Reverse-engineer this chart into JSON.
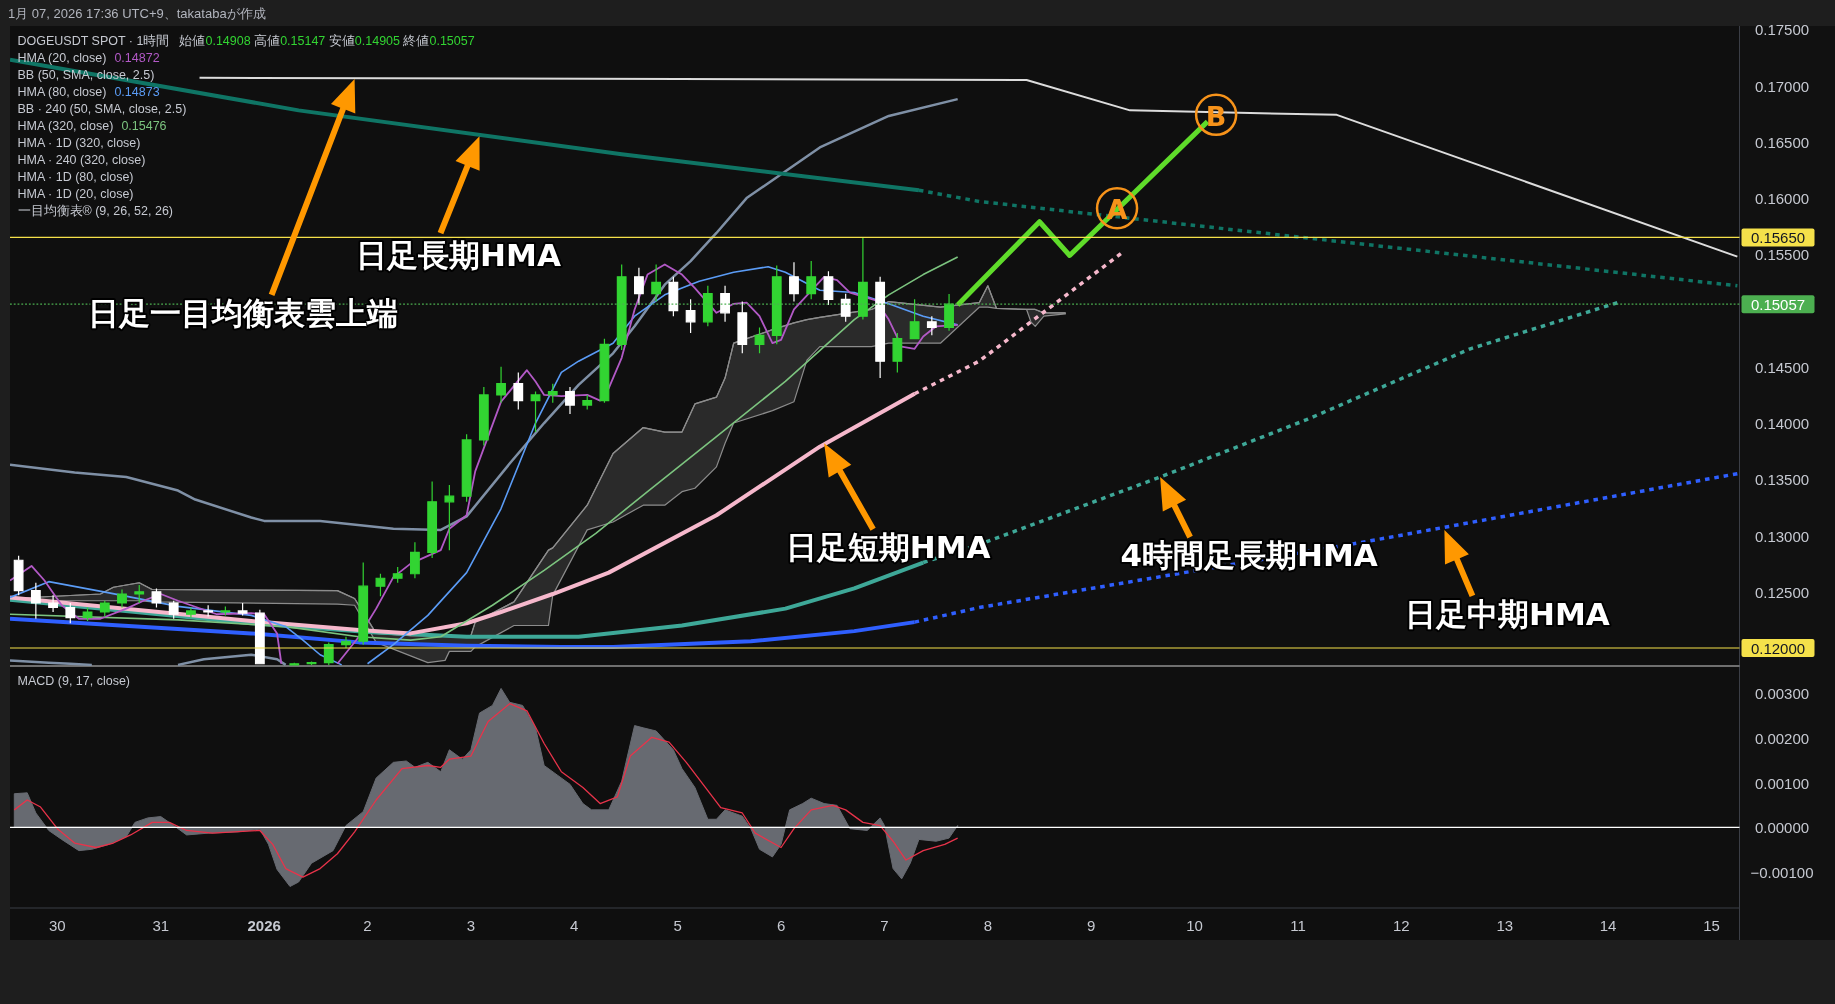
{
  "chart_data": [
    {
      "type": "candlestick",
      "title": "DOGEUSDT SPOT · 1時間",
      "subtitle": "始値0.14908 高値0.15147 安値0.14905 終値0.15057",
      "x": [
        "2025-12-29T15:00",
        "2025-12-29T19:00",
        "2025-12-29T23:00",
        "2025-12-30T03:00",
        "2025-12-30T07:00",
        "2025-12-30T11:00",
        "2025-12-30T15:00",
        "2025-12-30T19:00",
        "2025-12-30T23:00",
        "2025-12-31T03:00",
        "2025-12-31T07:00",
        "2025-12-31T11:00",
        "2025-12-31T15:00",
        "2025-12-31T19:00",
        "2025-12-31T23:00",
        "2026-01-01T07:00",
        "2026-01-01T11:00",
        "2026-01-01T15:00",
        "2026-01-01T19:00",
        "2026-01-01T23:00",
        "2026-01-02T03:00",
        "2026-01-02T07:00",
        "2026-01-02T11:00",
        "2026-01-02T15:00",
        "2026-01-02T19:00",
        "2026-01-02T23:00",
        "2026-01-03T03:00",
        "2026-01-03T07:00",
        "2026-01-03T11:00",
        "2026-01-03T15:00",
        "2026-01-03T19:00",
        "2026-01-03T23:00",
        "2026-01-04T03:00",
        "2026-01-04T07:00",
        "2026-01-04T11:00",
        "2026-01-04T15:00",
        "2026-01-04T19:00",
        "2026-01-04T23:00",
        "2026-01-05T03:00",
        "2026-01-05T07:00",
        "2026-01-05T11:00",
        "2026-01-05T15:00",
        "2026-01-05T19:00",
        "2026-01-05T23:00",
        "2026-01-06T03:00",
        "2026-01-06T07:00",
        "2026-01-06T11:00",
        "2026-01-06T15:00",
        "2026-01-06T19:00",
        "2026-01-06T23:00",
        "2026-01-07T03:00",
        "2026-01-07T07:00",
        "2026-01-07T11:00",
        "2026-01-07T15:00"
      ],
      "ohlc": [
        [
          0.1278,
          0.1282,
          0.1247,
          0.1251
        ],
        [
          0.1251,
          0.1258,
          0.1226,
          0.124
        ],
        [
          0.124,
          0.1247,
          0.1232,
          0.1236
        ],
        [
          0.1236,
          0.124,
          0.1222,
          0.1227
        ],
        [
          0.1227,
          0.1236,
          0.1224,
          0.1232
        ],
        [
          0.1232,
          0.1242,
          0.1228,
          0.124
        ],
        [
          0.124,
          0.1252,
          0.1236,
          0.1248
        ],
        [
          0.1248,
          0.1256,
          0.124,
          0.125
        ],
        [
          0.125,
          0.1253,
          0.1236,
          0.124
        ],
        [
          0.124,
          0.1242,
          0.1226,
          0.123
        ],
        [
          0.123,
          0.1236,
          0.1227,
          0.1233
        ],
        [
          0.1233,
          0.1238,
          0.1228,
          0.1232
        ],
        [
          0.1232,
          0.1237,
          0.1229,
          0.1233
        ],
        [
          0.1233,
          0.124,
          0.1229,
          0.1231
        ],
        [
          0.1231,
          0.1234,
          0.1186,
          0.1186
        ],
        [
          0.1185,
          0.1187,
          0.1185,
          0.1186
        ],
        [
          0.1186,
          0.1188,
          0.1185,
          0.1187
        ],
        [
          0.1187,
          0.1205,
          0.1185,
          0.1203
        ],
        [
          0.1203,
          0.121,
          0.12,
          0.1206
        ],
        [
          0.1206,
          0.1276,
          0.1203,
          0.1255
        ],
        [
          0.1255,
          0.1266,
          0.1246,
          0.1262
        ],
        [
          0.1262,
          0.1272,
          0.1258,
          0.1266
        ],
        [
          0.1266,
          0.1294,
          0.1262,
          0.1285
        ],
        [
          0.1285,
          0.1348,
          0.128,
          0.133
        ],
        [
          0.133,
          0.1345,
          0.1287,
          0.1335
        ],
        [
          0.1335,
          0.139,
          0.133,
          0.1385
        ],
        [
          0.1385,
          0.1432,
          0.138,
          0.1425
        ],
        [
          0.1425,
          0.145,
          0.1418,
          0.1435
        ],
        [
          0.1435,
          0.1445,
          0.1412,
          0.142
        ],
        [
          0.142,
          0.1428,
          0.1392,
          0.1425
        ],
        [
          0.1425,
          0.1435,
          0.1418,
          0.1428
        ],
        [
          0.1428,
          0.1432,
          0.1408,
          0.1416
        ],
        [
          0.1416,
          0.1425,
          0.1412,
          0.142
        ],
        [
          0.142,
          0.1475,
          0.1418,
          0.147
        ],
        [
          0.147,
          0.1541,
          0.1465,
          0.153
        ],
        [
          0.153,
          0.1538,
          0.1505,
          0.1515
        ],
        [
          0.1515,
          0.1541,
          0.1508,
          0.1525
        ],
        [
          0.1525,
          0.153,
          0.1495,
          0.15
        ],
        [
          0.15,
          0.151,
          0.148,
          0.149
        ],
        [
          0.149,
          0.1522,
          0.1486,
          0.1515
        ],
        [
          0.1515,
          0.1522,
          0.149,
          0.1498
        ],
        [
          0.1498,
          0.1508,
          0.1462,
          0.147
        ],
        [
          0.147,
          0.1485,
          0.1462,
          0.1478
        ],
        [
          0.1478,
          0.154,
          0.147,
          0.153
        ],
        [
          0.153,
          0.1543,
          0.1508,
          0.1515
        ],
        [
          0.1515,
          0.1544,
          0.151,
          0.153
        ],
        [
          0.153,
          0.1535,
          0.1505,
          0.151
        ],
        [
          0.151,
          0.1515,
          0.149,
          0.1495
        ],
        [
          0.1495,
          0.1565,
          0.1492,
          0.1525
        ],
        [
          0.1525,
          0.153,
          0.144,
          0.1455
        ],
        [
          0.1455,
          0.148,
          0.1445,
          0.1475
        ],
        [
          0.1475,
          0.151,
          0.1475,
          0.149
        ],
        [
          0.149,
          0.1495,
          0.1478,
          0.1485
        ],
        [
          0.1485,
          0.15147,
          0.1482,
          0.15057
        ]
      ],
      "colors": [
        "#ffffff",
        "#ffffff",
        "#ffffff",
        "#ffffff",
        "#32d432",
        "#32d432",
        "#32d432",
        "#32d432",
        "#ffffff",
        "#ffffff",
        "#32d432",
        "#ffffff",
        "#32d432",
        "#ffffff",
        "#ffffff",
        "#32d432",
        "#32d432",
        "#32d432",
        "#32d432",
        "#32d432",
        "#32d432",
        "#32d432",
        "#32d432",
        "#32d432",
        "#32d432",
        "#32d432",
        "#32d432",
        "#32d432",
        "#ffffff",
        "#32d432",
        "#32d432",
        "#ffffff",
        "#32d432",
        "#32d432",
        "#32d432",
        "#ffffff",
        "#32d432",
        "#ffffff",
        "#ffffff",
        "#32d432",
        "#ffffff",
        "#ffffff",
        "#32d432",
        "#32d432",
        "#ffffff",
        "#32d432",
        "#ffffff",
        "#ffffff",
        "#32d432",
        "#ffffff",
        "#32d432",
        "#32d432",
        "#ffffff",
        "#32d432"
      ],
      "series": [
        {
          "type": "line",
          "color": "#8c8c8c",
          "x": [
            "2025-12-29T13:00",
            "2025-12-30T10:00",
            "2025-12-30T13:00",
            "2025-12-30T19:00",
            "2025-12-30T22:00",
            "2026-01-01T17:00",
            "2026-01-01T21:00",
            "2026-01-02T02:00",
            "2026-01-02T10:00",
            "2026-01-02T14:00",
            "2026-01-02T18:00",
            "2026-01-02T19:00",
            "2026-01-03T00:00",
            "2026-01-03T01:00",
            "2026-01-03T10:00",
            "2026-01-03T18:00",
            "2026-01-03T19:00",
            "2026-01-04T03:00",
            "2026-01-04T09:00",
            "2026-01-04T16:00",
            "2026-01-04T21:00",
            "2026-01-05T01:00",
            "2026-01-05T04:00",
            "2026-01-05T09:00",
            "2026-01-05T11:00",
            "2026-01-05T13:00",
            "2026-01-05T22:00",
            "2026-01-06T03:00",
            "2026-01-06T06:00",
            "2026-01-06T09:00",
            "2026-01-06T21:00",
            "2026-01-07T01:00",
            "2026-01-07T13:00",
            "2026-01-07T22:00",
            "2026-01-08T00:00",
            "2026-01-08T02:00",
            "2026-01-08T09:00",
            "2026-01-08T10:00",
            "2026-01-08T11:00",
            "2026-01-08T13:00",
            "2026-01-08T18:00"
          ],
          "values": [
            0.1244,
            0.1248,
            0.1254,
            0.1258,
            0.1252,
            0.1251,
            0.1244,
            0.1213,
            0.1211,
            0.1211,
            0.1211,
            0.1211,
            0.1211,
            0.1223,
            0.1241,
            0.1287,
            0.1289,
            0.1327,
            0.1373,
            0.1396,
            0.1392,
            0.1392,
            0.1417,
            0.1423,
            0.144,
            0.1471,
            0.1483,
            0.1489,
            0.1492,
            0.1494,
            0.1501,
            0.1508,
            0.1503,
            0.1507,
            0.1522,
            0.1502,
            0.1501,
            0.1501,
            0.1501,
            0.1498,
            0.1498
          ],
          "upper": [
            0.1244,
            0.1248,
            0.1254,
            0.1258,
            0.1252,
            0.1251,
            0.1244,
            0.1213,
            0.1211,
            0.1211,
            0.1211,
            0.1211,
            0.1211,
            0.1223,
            0.1241,
            0.1287,
            0.1289,
            0.1327,
            0.1373,
            0.1396,
            0.1392,
            0.1392,
            0.1417,
            0.1423,
            0.144,
            0.1471,
            0.1483,
            0.1489,
            0.1492,
            0.1494,
            0.1501,
            0.1508,
            0.1503,
            0.1507,
            0.1522,
            0.1502,
            0.1501,
            0.1501,
            0.1501,
            0.1498,
            0.1498
          ],
          "lower": [
            0.1242,
            0.1242,
            0.1242,
            0.1242,
            0.1241,
            0.1239,
            0.1238,
            0.1205,
            0.1193,
            0.1187,
            0.1189,
            0.1197,
            0.1197,
            0.1201,
            0.122,
            0.122,
            0.1247,
            0.1305,
            0.1312,
            0.1327,
            0.1327,
            0.1339,
            0.1342,
            0.1361,
            0.1382,
            0.14,
            0.1411,
            0.1419,
            0.1456,
            0.1468,
            0.1468,
            0.1471,
            0.1471,
            0.1503,
            0.1503,
            0.1502,
            0.1501,
            0.149,
            0.1486,
            0.1495,
            0.1497
          ]
        },
        {
          "type": "line",
          "color": "#7f90a6",
          "x": [
            "2025-12-29T13:00",
            "2025-12-30T04:00",
            "2025-12-30T16:00",
            "2025-12-31T04:00",
            "2025-12-31T08:00",
            "2025-12-31T21:00",
            "2026-01-01T00:00",
            "2026-01-01T13:00",
            "2026-01-02T06:00",
            "2026-01-02T17:00",
            "2026-01-02T23:00",
            "2026-01-03T09:00",
            "2026-01-03T17:00",
            "2026-01-04T01:00",
            "2026-01-04T09:00",
            "2026-01-04T14:00",
            "2026-01-04T21:00",
            "2026-01-05T03:00",
            "2026-01-05T09:00",
            "2026-01-05T16:00",
            "2026-01-06T09:00",
            "2026-01-07T01:00",
            "2026-01-07T17:00"
          ],
          "values": [
            0.1363,
            0.1356,
            0.1352,
            0.134,
            0.1332,
            0.1316,
            0.1313,
            0.1313,
            0.1306,
            0.1305,
            0.1317,
            0.1364,
            0.14,
            0.1434,
            0.1462,
            0.1486,
            0.1523,
            0.1544,
            0.1569,
            0.16,
            0.1645,
            0.1673,
            0.1688
          ]
        },
        {
          "type": "line",
          "color": "#7f90a6",
          "x": [
            "2025-12-29T13:00",
            "2025-12-29T22:00",
            "2025-12-30T03:00",
            "2025-12-30T08:00"
          ],
          "values": [
            0.1189,
            0.1187,
            0.1186,
            0.1185
          ]
        },
        {
          "type": "line",
          "color": "#7f90a6",
          "x": [
            "2025-12-31T04:00",
            "2025-12-31T10:00",
            "2025-12-31T21:00",
            "2026-01-01T03:00",
            "2026-01-01T05:00"
          ],
          "values": [
            0.1185,
            0.119,
            0.1194,
            0.119,
            0.1185
          ]
        },
        {
          "type": "line",
          "color": "#0f7565",
          "x": [
            "2025-12-29T13:00",
            "2026-01-01T08:00",
            "2026-01-04T11:00",
            "2026-01-07T08:00"
          ],
          "values": [
            0.1723,
            0.1678,
            0.1639,
            0.1607
          ]
        },
        {
          "type": "line",
          "color": "#0f7565",
          "line_style": "dotted",
          "x": [
            "2026-01-07T08:00",
            "2026-01-07T22:00",
            "2026-01-15T06:00"
          ],
          "values": [
            0.1607,
            0.1597,
            0.1522
          ]
        },
        {
          "type": "line",
          "color": "#3ea898",
          "x": [
            "2025-12-29T13:00",
            "2025-12-31T21:00",
            "2026-01-02T01:00",
            "2026-01-02T23:00",
            "2026-01-04T01:00",
            "2026-01-05T01:00",
            "2026-01-06T01:00",
            "2026-01-06T17:00",
            "2026-01-07T09:00"
          ],
          "values": [
            0.1243,
            0.1222,
            0.1214,
            0.121,
            0.121,
            0.122,
            0.1235,
            0.1253,
            0.1276
          ]
        },
        {
          "type": "line",
          "color": "#3ea898",
          "line_style": "dotted",
          "x": [
            "2026-01-07T09:00",
            "2026-01-07T22:00",
            "2026-01-09T16:00",
            "2026-01-11T02:00",
            "2026-01-12T16:00",
            "2026-01-14T03:00"
          ],
          "values": [
            0.1276,
            0.1292,
            0.1352,
            0.1403,
            0.1466,
            0.1508
          ]
        },
        {
          "type": "line",
          "color": "#2f5fff",
          "x": [
            "2025-12-29T13:00",
            "2025-12-31T21:00",
            "2026-01-01T22:00",
            "2026-01-02T23:00",
            "2026-01-03T21:00",
            "2026-01-04T09:00",
            "2026-01-05T17:00",
            "2026-01-06T17:00",
            "2026-01-07T07:00"
          ],
          "values": [
            0.1226,
            0.1213,
            0.1205,
            0.1202,
            0.1201,
            0.1201,
            0.1206,
            0.1215,
            0.1223
          ]
        },
        {
          "type": "line",
          "color": "#2f5fff",
          "line_style": "dotted",
          "x": [
            "2026-01-07T07:00",
            "2026-01-07T22:00",
            "2026-01-11T15:00",
            "2026-01-15T06:00"
          ],
          "values": [
            0.1223,
            0.1236,
            0.1294,
            0.1355
          ]
        },
        {
          "type": "line",
          "color": "#f6b8cc",
          "x": [
            "2025-12-29T13:00",
            "2025-12-31T21:00",
            "2026-01-01T22:00",
            "2026-01-02T10:00",
            "2026-01-02T23:00",
            "2026-01-03T07:00",
            "2026-01-03T19:00",
            "2026-01-04T08:00",
            "2026-01-05T09:00",
            "2026-01-06T09:00",
            "2026-01-07T07:00"
          ],
          "values": [
            0.1245,
            0.1224,
            0.1216,
            0.1213,
            0.1222,
            0.1232,
            0.1248,
            0.1267,
            0.1318,
            0.1379,
            0.1426
          ]
        },
        {
          "type": "line",
          "color": "#f6b8cc",
          "line_style": "dotted",
          "x": [
            "2026-01-07T07:00",
            "2026-01-07T22:00",
            "2026-01-09T07:00"
          ],
          "values": [
            0.1426,
            0.1455,
            0.1551
          ]
        },
        {
          "type": "line",
          "color": "#7cc47f",
          "x": [
            "2025-12-29T13:00",
            "2025-12-31T04:00",
            "2026-01-01T05:00",
            "2026-01-01T22:00",
            "2026-01-02T10:00",
            "2026-01-02T17:00",
            "2026-01-03T05:00",
            "2026-01-03T17:00",
            "2026-01-04T05:00",
            "2026-01-04T17:00",
            "2026-01-05T09:00",
            "2026-01-06T01:00",
            "2026-01-06T17:00",
            "2026-01-07T01:00",
            "2026-01-07T09:00",
            "2026-01-07T17:00"
          ],
          "values": [
            0.123,
            0.1225,
            0.1219,
            0.121,
            0.1207,
            0.121,
            0.1238,
            0.1269,
            0.1302,
            0.1339,
            0.1388,
            0.1437,
            0.1492,
            0.1514,
            0.1532,
            0.15476
          ]
        },
        {
          "type": "line",
          "color": "#5b9cf6",
          "x": [
            "2025-12-29T13:00",
            "2025-12-29T22:00",
            "2025-12-30T12:00",
            "2025-12-31T04:00",
            "2025-12-31T21:00",
            "2026-01-01T05:00",
            "2026-01-01T09:00",
            "2026-01-01T13:00",
            "2026-01-01T18:00"
          ],
          "values": [
            0.1245,
            0.1259,
            0.1249,
            0.1237,
            0.1229,
            0.1219,
            0.1207,
            0.1194,
            0.1185
          ]
        },
        {
          "type": "line",
          "color": "#5b9cf6",
          "x": [
            "2026-01-02T00:00",
            "2026-01-02T06:00",
            "2026-01-02T14:00",
            "2026-01-02T23:00",
            "2026-01-03T07:00",
            "2026-01-03T15:00",
            "2026-01-03T21:00",
            "2026-01-04T01:00",
            "2026-01-04T09:00",
            "2026-01-04T14:00",
            "2026-01-04T21:00",
            "2026-01-05T05:00",
            "2026-01-05T13:00",
            "2026-01-05T21:00",
            "2026-01-06T01:00",
            "2026-01-06T09:00",
            "2026-01-06T17:00",
            "2026-01-07T01:00",
            "2026-01-07T09:00",
            "2026-01-07T17:00"
          ],
          "values": [
            0.1186,
            0.1203,
            0.1229,
            0.1267,
            0.1324,
            0.14,
            0.1445,
            0.1455,
            0.1471,
            0.1495,
            0.1514,
            0.1526,
            0.1534,
            0.1539,
            0.1534,
            0.1518,
            0.1516,
            0.1506,
            0.1495,
            0.14873
          ]
        },
        {
          "type": "line",
          "color": "#b259c6",
          "x": [
            "2025-12-29T13:00",
            "2025-12-29T18:00",
            "2025-12-29T21:00",
            "2025-12-30T01:00",
            "2025-12-30T05:00",
            "2025-12-30T10:00",
            "2025-12-30T16:00",
            "2025-12-30T20:00",
            "2025-12-31T00:00",
            "2025-12-31T04:00",
            "2025-12-31T13:00",
            "2025-12-31T21:00",
            "2026-01-01T00:00",
            "2026-01-01T03:00",
            "2026-01-01T04:00"
          ],
          "values": [
            0.126,
            0.1273,
            0.126,
            0.1238,
            0.1226,
            0.1226,
            0.1235,
            0.1242,
            0.1248,
            0.1242,
            0.123,
            0.1231,
            0.123,
            0.1213,
            0.1186
          ]
        },
        {
          "type": "line",
          "color": "#b259c6",
          "x": [
            "2026-01-01T17:00",
            "2026-01-01T22:00",
            "2026-01-02T02:00",
            "2026-01-02T06:00",
            "2026-01-02T10:00",
            "2026-01-02T17:00",
            "2026-01-02T19:00",
            "2026-01-02T23:00",
            "2026-01-03T01:00",
            "2026-01-03T07:00",
            "2026-01-03T13:00",
            "2026-01-03T15:00",
            "2026-01-03T17:00",
            "2026-01-03T21:00",
            "2026-01-04T03:00",
            "2026-01-04T06:00",
            "2026-01-04T08:00",
            "2026-01-04T11:00",
            "2026-01-04T14:00",
            "2026-01-04T17:00",
            "2026-01-04T21:00",
            "2026-01-05T01:00",
            "2026-01-05T04:00",
            "2026-01-05T09:00",
            "2026-01-05T13:00",
            "2026-01-05T16:00",
            "2026-01-05T19:00",
            "2026-01-05T22:00",
            "2026-01-06T00:00",
            "2026-01-06T03:00",
            "2026-01-06T10:00",
            "2026-01-06T13:00",
            "2026-01-06T16:00",
            "2026-01-06T22:00",
            "2026-01-07T01:00",
            "2026-01-07T04:00",
            "2026-01-07T07:00",
            "2026-01-07T09:00",
            "2026-01-07T12:00",
            "2026-01-07T17:00"
          ],
          "values": [
            0.1186,
            0.121,
            0.1235,
            0.1263,
            0.1275,
            0.1287,
            0.1306,
            0.1318,
            0.1357,
            0.1419,
            0.1447,
            0.1437,
            0.1425,
            0.1424,
            0.1425,
            0.142,
            0.1431,
            0.1458,
            0.1501,
            0.1532,
            0.1541,
            0.1532,
            0.152,
            0.1498,
            0.1506,
            0.1507,
            0.1495,
            0.1471,
            0.1474,
            0.1501,
            0.153,
            0.1527,
            0.1516,
            0.1509,
            0.1492,
            0.1468,
            0.1466,
            0.1477,
            0.1486,
            0.14872
          ]
        },
        {
          "type": "line",
          "color": "#dcdcdc",
          "x": [
            "2025-12-31T09:00",
            "2026-01-08T09:00",
            "2026-01-09T09:00",
            "2026-01-11T09:00",
            "2026-01-15T06:00"
          ],
          "values": [
            0.1707,
            0.1705,
            0.1678,
            0.1674,
            0.1548
          ]
        },
        {
          "type": "line",
          "color": "#5fdc2a",
          "x": [
            "2026-01-07T17:00",
            "2026-01-08T12:00",
            "2026-01-08T19:00",
            "2026-01-10T03:00"
          ],
          "values": [
            0.1505,
            0.1579,
            0.1549,
            0.1668
          ]
        }
      ],
      "xlim": [
        "2025-12-29T13:00",
        "2026-01-15T06:30"
      ],
      "ylim": [
        0.1184,
        0.1753
      ],
      "yticks": [
        {
          "value": 0.175,
          "label": "0.17500"
        },
        {
          "value": 0.17,
          "label": "0.17000"
        },
        {
          "value": 0.165,
          "label": "0.16500"
        },
        {
          "value": 0.16,
          "label": "0.16000"
        },
        {
          "value": 0.155,
          "label": "0.15500"
        },
        {
          "value": 0.145,
          "label": "0.14500"
        },
        {
          "value": 0.14,
          "label": "0.14000"
        },
        {
          "value": 0.135,
          "label": "0.13500"
        },
        {
          "value": 0.13,
          "label": "0.13000"
        },
        {
          "value": 0.125,
          "label": "0.12500"
        }
      ],
      "tick_labels": "y",
      "ref_lines": [
        {
          "axis": "y",
          "value": 0.1565,
          "label": "0.15650",
          "color": "#f5e14a"
        },
        {
          "axis": "y",
          "value": 0.15057,
          "label": "0.15057",
          "color": "#4caf50",
          "line_style": "dotted"
        },
        {
          "axis": "y",
          "value": 0.12,
          "label": "0.12000",
          "color": "#f5e14a"
        }
      ],
      "annotations": [
        "1月 07, 2026 17:36 UTC+9、takatabaが作成",
        "HMA (20, close) 0.14872",
        "BB (50, SMA, close, 2.5)",
        "HMA (80, close) 0.14873",
        "BB · 240 (50, SMA, close, 2.5)",
        "HMA (320, close) 0.15476",
        "HMA · 1D (320, close)",
        "HMA · 240 (320, close)",
        "HMA · 1D (80, close)",
        "HMA · 1D (20, close)",
        "一目均衡表® (9, 26, 52, 26)",
        "日足一目均衡表雲上端",
        "日足長期HMA",
        {
          "text": "日足短期HMA",
          "x": "2026-01-06T10:00",
          "y": 0.1382
        },
        {
          "text": "4時間足長期HMA",
          "x": "2026-01-09T16:00",
          "y": 0.1352
        },
        {
          "text": "日足中期HMA",
          "x": "2026-01-12T10:00",
          "y": 0.1305
        },
        {
          "text": "A",
          "x": "2026-01-09T06:00",
          "y": 0.1591
        },
        {
          "text": "B",
          "x": "2026-01-10T05:00",
          "y": 0.1674
        }
      ]
    },
    {
      "type": "area",
      "title": "MACD (9, 17, close)",
      "series": [
        {
          "type": "area",
          "color": "#676a71",
          "x": [
            "2025-12-29T14:00",
            "2025-12-29T17:00",
            "2025-12-29T19:00",
            "2025-12-29T22:00",
            "2025-12-30T01:00",
            "2025-12-30T05:00",
            "2025-12-30T08:00",
            "2025-12-30T12:00",
            "2025-12-30T16:00",
            "2025-12-30T18:00",
            "2025-12-30T21:00",
            "2025-12-31T00:00",
            "2025-12-31T03:00",
            "2025-12-31T06:00",
            "2025-12-31T11:00",
            "2025-12-31T18:00",
            "2025-12-31T23:00",
            "2026-01-01T01:00",
            "2026-01-01T03:00",
            "2026-01-01T06:00",
            "2026-01-01T08:00",
            "2026-01-01T11:00",
            "2026-01-01T16:00",
            "2026-01-01T19:00",
            "2026-01-01T23:00",
            "2026-01-02T02:00",
            "2026-01-02T06:00",
            "2026-01-02T09:00",
            "2026-01-02T11:00",
            "2026-01-02T14:00",
            "2026-01-02T17:00",
            "2026-01-02T19:00",
            "2026-01-02T22:00",
            "2026-01-03T00:00",
            "2026-01-03T02:00",
            "2026-01-03T05:00",
            "2026-01-03T07:00",
            "2026-01-03T09:00",
            "2026-01-03T12:00",
            "2026-01-03T15:00",
            "2026-01-03T17:00",
            "2026-01-03T20:00",
            "2026-01-03T23:00",
            "2026-01-04T02:00",
            "2026-01-04T04:00",
            "2026-01-04T08:00",
            "2026-01-04T11:00",
            "2026-01-04T12:00",
            "2026-01-04T14:00",
            "2026-01-04T16:00",
            "2026-01-04T19:00",
            "2026-01-04T23:00",
            "2026-01-05T01:00",
            "2026-01-05T04:00",
            "2026-01-05T07:00",
            "2026-01-05T09:00",
            "2026-01-05T11:00",
            "2026-01-05T15:00",
            "2026-01-05T17:00",
            "2026-01-05T19:00",
            "2026-01-05T22:00",
            "2026-01-06T00:00",
            "2026-01-06T02:00",
            "2026-01-06T05:00",
            "2026-01-06T07:00",
            "2026-01-06T10:00",
            "2026-01-06T13:00",
            "2026-01-06T16:00",
            "2026-01-06T20:00",
            "2026-01-06T23:00",
            "2026-01-07T00:00",
            "2026-01-07T02:00",
            "2026-01-07T04:00",
            "2026-01-07T06:00",
            "2026-01-07T08:00",
            "2026-01-07T12:00",
            "2026-01-07T15:00",
            "2026-01-07T17:00"
          ],
          "values": [
            0.00075,
            0.00077,
            0.00032,
            -7e-05,
            -0.00027,
            -0.00052,
            -0.00049,
            -0.00038,
            -0.00021,
            0.00011,
            0.00021,
            0.00024,
            4e-05,
            -0.00017,
            -0.00013,
            -0.0001,
            -4e-05,
            -0.00038,
            -0.00094,
            -0.00132,
            -0.00122,
            -0.0008,
            -0.00052,
            4e-05,
            0.00035,
            0.0011,
            0.00145,
            0.00148,
            0.00134,
            0.00145,
            0.00124,
            0.00173,
            0.00152,
            0.00173,
            0.00255,
            0.00272,
            0.0031,
            0.00279,
            0.00272,
            0.00222,
            0.00138,
            0.00117,
            0.00096,
            0.00053,
            0.00039,
            0.00039,
            0.00103,
            0.00145,
            0.00227,
            0.00222,
            0.00215,
            0.00173,
            0.00131,
            0.00089,
            0.00018,
            0.00018,
            0.00039,
            0.00025,
            -3e-05,
            -0.00049,
            -0.00066,
            -0.00038,
            0.00039,
            0.00053,
            0.00065,
            0.00053,
            0.00049,
            -3e-05,
            -7e-05,
            0.00021,
            4e-05,
            -0.00092,
            -0.00115,
            -0.0008,
            -0.00027,
            -0.00031,
            -0.00024,
            4e-05
          ]
        },
        {
          "type": "line",
          "color": "#e8334a",
          "x": [
            "2025-12-29T14:00",
            "2025-12-29T17:00",
            "2025-12-29T20:00",
            "2025-12-30T00:00",
            "2025-12-30T04:00",
            "2025-12-30T09:00",
            "2025-12-30T13:00",
            "2025-12-30T17:00",
            "2025-12-30T22:00",
            "2025-12-31T02:00",
            "2025-12-31T06:00",
            "2025-12-31T12:00",
            "2025-12-31T23:00",
            "2026-01-01T02:00",
            "2026-01-01T05:00",
            "2026-01-01T09:00",
            "2026-01-01T13:00",
            "2026-01-01T17:00",
            "2026-01-01T21:00",
            "2026-01-02T02:00",
            "2026-01-02T08:00",
            "2026-01-02T14:00",
            "2026-01-02T17:00",
            "2026-01-02T19:00",
            "2026-01-03T00:00",
            "2026-01-03T04:00",
            "2026-01-03T09:00",
            "2026-01-03T13:00",
            "2026-01-03T17:00",
            "2026-01-03T21:00",
            "2026-01-04T02:00",
            "2026-01-04T06:00",
            "2026-01-04T10:00",
            "2026-01-04T13:00",
            "2026-01-04T18:00",
            "2026-01-04T22:00",
            "2026-01-05T02:00",
            "2026-01-05T07:00",
            "2026-01-05T10:00",
            "2026-01-05T15:00",
            "2026-01-05T18:00",
            "2026-01-06T00:00",
            "2026-01-06T03:00",
            "2026-01-06T07:00",
            "2026-01-06T12:00",
            "2026-01-06T15:00",
            "2026-01-06T19:00",
            "2026-01-06T23:00",
            "2026-01-07T02:00",
            "2026-01-07T05:00",
            "2026-01-07T09:00",
            "2026-01-07T14:00",
            "2026-01-07T17:00"
          ],
          "values": [
            0.00039,
            0.00061,
            0.00046,
            -3e-05,
            -0.00035,
            -0.00045,
            -0.00035,
            -0.00017,
            0.00011,
            0.00011,
            -7e-05,
            -0.00013,
            -7e-05,
            -0.00038,
            -0.00092,
            -0.00111,
            -0.00092,
            -0.00059,
            -0.0001,
            0.00061,
            0.00131,
            0.00138,
            0.00134,
            0.00152,
            0.00159,
            0.00236,
            0.00276,
            0.0026,
            0.00187,
            0.00124,
            0.00089,
            0.00053,
            0.00068,
            0.00159,
            0.00201,
            0.0019,
            0.00145,
            0.00082,
            0.00044,
            0.00032,
            -0.00013,
            -0.00045,
            -3e-05,
            0.00039,
            0.00049,
            0.00039,
            0.00011,
            4e-05,
            -0.00031,
            -0.00073,
            -0.00052,
            -0.00038,
            -0.00024
          ]
        }
      ],
      "xlim": [
        "2025-12-29T13:00",
        "2026-01-15T06:30"
      ],
      "ylim": [
        -0.0018,
        0.0036
      ],
      "xticks": [
        {
          "value": "2025-12-30",
          "label": "30"
        },
        {
          "value": "2025-12-31",
          "label": "31"
        },
        {
          "value": "2026-01-01",
          "label": "2026"
        },
        {
          "value": "2026-01-02",
          "label": "2"
        },
        {
          "value": "2026-01-03",
          "label": "3"
        },
        {
          "value": "2026-01-04",
          "label": "4"
        },
        {
          "value": "2026-01-05",
          "label": "5"
        },
        {
          "value": "2026-01-06",
          "label": "6"
        },
        {
          "value": "2026-01-07",
          "label": "7"
        },
        {
          "value": "2026-01-08",
          "label": "8"
        },
        {
          "value": "2026-01-09",
          "label": "9"
        },
        {
          "value": "2026-01-10",
          "label": "10"
        },
        {
          "value": "2026-01-11",
          "label": "11"
        },
        {
          "value": "2026-01-12",
          "label": "12"
        },
        {
          "value": "2026-01-13",
          "label": "13"
        },
        {
          "value": "2026-01-14",
          "label": "14"
        },
        {
          "value": "2026-01-15",
          "label": "15"
        }
      ],
      "yticks": [
        {
          "value": 0.003,
          "label": "0.00300"
        },
        {
          "value": 0.002,
          "label": "0.00200"
        },
        {
          "value": 0.001,
          "label": "0.00100"
        },
        {
          "value": 0,
          "label": "0.00000"
        },
        {
          "value": -0.001,
          "label": "−0.00100"
        }
      ],
      "ref_lines": [
        {
          "axis": "y",
          "value": 0,
          "color": "#ffffff"
        }
      ]
    }
  ]
}
